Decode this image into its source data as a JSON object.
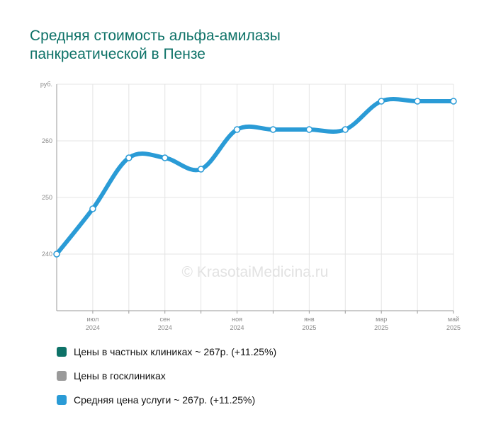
{
  "title_lines": [
    "Средняя стоимость альфа-амилазы",
    "панкреатической в Пензе"
  ],
  "watermark": "© KrasotaiMedicina.ru",
  "colors": {
    "title": "#0e7268",
    "line": "#2a9bd6",
    "private": "#0e7268",
    "public": "#9a9a9a",
    "average": "#2a9bd6"
  },
  "legend": [
    {
      "label": "Цены в частных клиниках ~ 267р. (+11.25%)",
      "color": "#0e7268"
    },
    {
      "label": "Цены в госклиниках",
      "color": "#9a9a9a"
    },
    {
      "label": "Средняя цена услуги ~ 267р. (+11.25%)",
      "color": "#2a9bd6"
    }
  ],
  "chart_data": {
    "type": "line",
    "y_unit": "руб.",
    "ylim": [
      230,
      270
    ],
    "y_ticks": [
      240,
      250,
      260
    ],
    "x": [
      "2024-06",
      "2024-07",
      "2024-08",
      "2024-09",
      "2024-10",
      "2024-11",
      "2024-12",
      "2025-01",
      "2025-02",
      "2025-03",
      "2025-04",
      "2025-05"
    ],
    "x_tick_labels": [
      {
        "index": 1,
        "month": "июл",
        "year": "2024"
      },
      {
        "index": 3,
        "month": "сен",
        "year": "2024"
      },
      {
        "index": 5,
        "month": "ноя",
        "year": "2024"
      },
      {
        "index": 7,
        "month": "янв",
        "year": "2025"
      },
      {
        "index": 9,
        "month": "мар",
        "year": "2025"
      },
      {
        "index": 11,
        "month": "май",
        "year": "2025"
      }
    ],
    "series": [
      {
        "values": [
          240,
          248,
          257,
          257,
          255,
          262,
          262,
          262,
          262,
          267,
          267,
          267
        ]
      }
    ],
    "grid": true
  }
}
